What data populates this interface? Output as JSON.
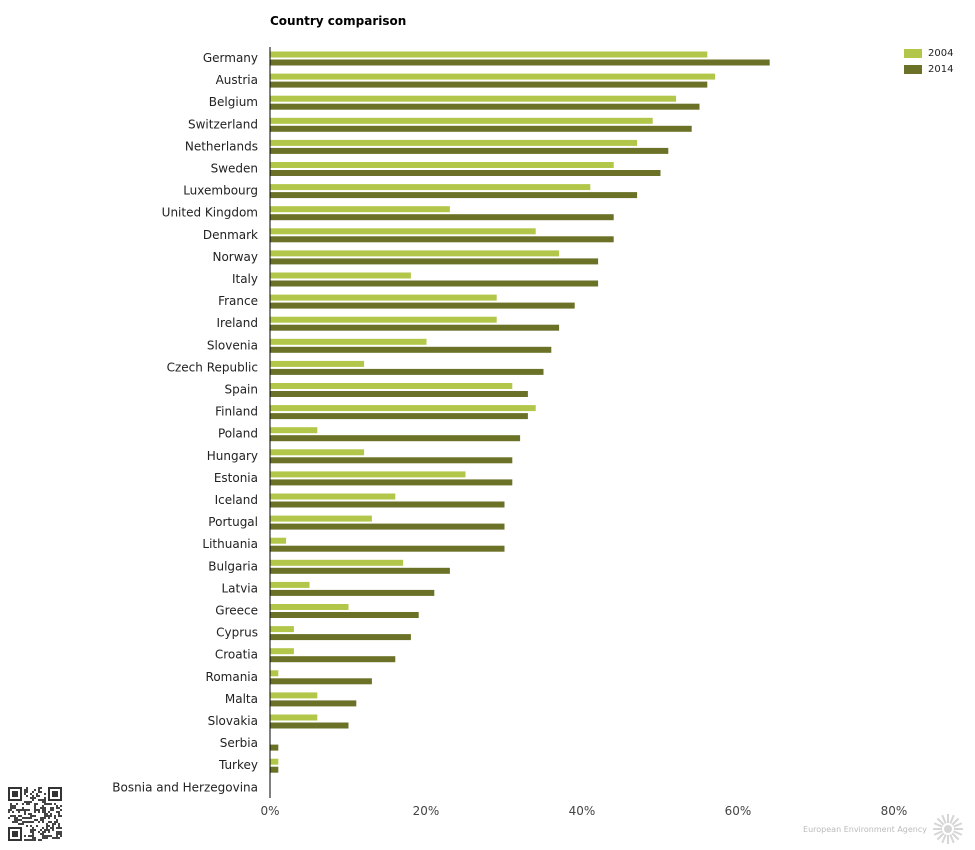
{
  "brand": {
    "name": "European Environment Agency"
  },
  "chart_data": {
    "type": "bar",
    "orientation": "horizontal",
    "title": "Country comparison",
    "xlabel": "",
    "ylabel": "",
    "xlim": [
      0,
      80
    ],
    "x_ticks": [
      "0%",
      "20%",
      "40%",
      "60%",
      "80%"
    ],
    "x_tick_values": [
      0,
      20,
      40,
      60,
      80
    ],
    "grid": false,
    "legend_position": "top-right",
    "categories": [
      "Germany",
      "Austria",
      "Belgium",
      "Switzerland",
      "Netherlands",
      "Sweden",
      "Luxembourg",
      "United Kingdom",
      "Denmark",
      "Norway",
      "Italy",
      "France",
      "Ireland",
      "Slovenia",
      "Czech Republic",
      "Spain",
      "Finland",
      "Poland",
      "Hungary",
      "Estonia",
      "Iceland",
      "Portugal",
      "Lithuania",
      "Bulgaria",
      "Latvia",
      "Greece",
      "Cyprus",
      "Croatia",
      "Romania",
      "Malta",
      "Slovakia",
      "Serbia",
      "Turkey",
      "Bosnia and Herzegovina"
    ],
    "series": [
      {
        "name": "2004",
        "color": "#b2c64a",
        "values": [
          56,
          57,
          52,
          49,
          47,
          44,
          41,
          23,
          34,
          37,
          18,
          29,
          29,
          20,
          12,
          31,
          34,
          6,
          12,
          25,
          16,
          13,
          2,
          17,
          5,
          10,
          3,
          3,
          1,
          6,
          6,
          null,
          1,
          null
        ]
      },
      {
        "name": "2014",
        "color": "#6b7228",
        "values": [
          64,
          56,
          55,
          54,
          51,
          50,
          47,
          44,
          44,
          42,
          42,
          39,
          37,
          36,
          35,
          33,
          33,
          32,
          31,
          31,
          30,
          30,
          30,
          23,
          21,
          19,
          18,
          16,
          13,
          11,
          10,
          1,
          1,
          null
        ]
      }
    ]
  }
}
